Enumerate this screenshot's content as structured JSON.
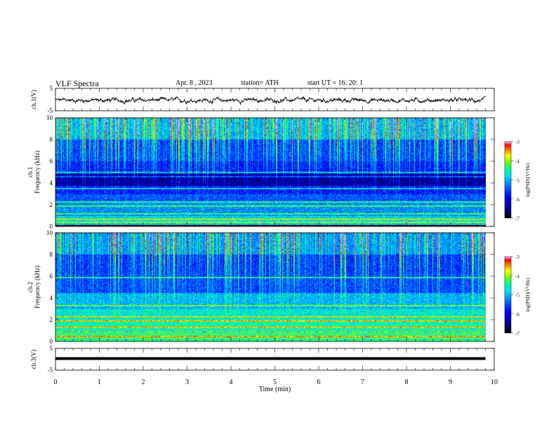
{
  "header": {
    "title": "VLF  Spectra",
    "date": "Apr. 8  , 2023",
    "station": "station= ATH",
    "start": "start  UT  =    16: 20: 1"
  },
  "colors": {
    "background": "#ffffff",
    "axis": "#000000",
    "colormap": [
      "#000000",
      "#00008b",
      "#0000ff",
      "#0080ff",
      "#00ffff",
      "#00ff80",
      "#80ff00",
      "#ffff00",
      "#ff8000",
      "#ff0000",
      "#ff80ff",
      "#ffffff"
    ]
  },
  "chart_data": [
    {
      "type": "line",
      "ylabel": "ch.1(V)",
      "ylim": [
        -5,
        5
      ],
      "y_ticks": [
        "5",
        "-5"
      ],
      "xlim": [
        0,
        10
      ],
      "series": [
        {
          "x": [
            0,
            9.8
          ],
          "y": [
            0,
            0
          ],
          "noise_amplitude": 0.8
        }
      ]
    },
    {
      "type": "heatmap",
      "ylabel": "ch.1\nFrequency  (kHz)",
      "ylim": [
        0,
        10
      ],
      "y_ticks": [
        "0",
        "2",
        "4",
        "6",
        "8",
        "10"
      ],
      "xlim": [
        0,
        10
      ],
      "data_x_end": 9.8,
      "colorbar": {
        "label": "log(PSD)(V²/Hz)",
        "range": [
          -7,
          -3
        ],
        "ticks": [
          "-3",
          "-4",
          "-5",
          "-6",
          "-7"
        ]
      }
    },
    {
      "type": "heatmap",
      "ylabel": "ch.2\nFrequency  (kHz)",
      "ylim": [
        0,
        10
      ],
      "y_ticks": [
        "0",
        "2",
        "4",
        "6",
        "8",
        "10"
      ],
      "xlim": [
        0,
        10
      ],
      "data_x_end": 9.8,
      "colorbar": {
        "label": "log(PSD)(V²/Hz)",
        "range": [
          -7,
          -3
        ],
        "ticks": [
          "-3",
          "-4",
          "-5",
          "-6",
          "-7"
        ]
      }
    },
    {
      "type": "line",
      "ylabel": "ch.3(V)",
      "ylim": [
        -5,
        5
      ],
      "y_ticks": [
        "5",
        "-5"
      ],
      "xlim": [
        0,
        10
      ],
      "series": [
        {
          "x": [
            0,
            9.8
          ],
          "y": [
            0,
            0
          ]
        }
      ]
    }
  ],
  "x_axis": {
    "label": "Time  (min)",
    "ticks": [
      "0",
      "1",
      "2",
      "3",
      "4",
      "5",
      "6",
      "7",
      "8",
      "9",
      "10"
    ]
  }
}
